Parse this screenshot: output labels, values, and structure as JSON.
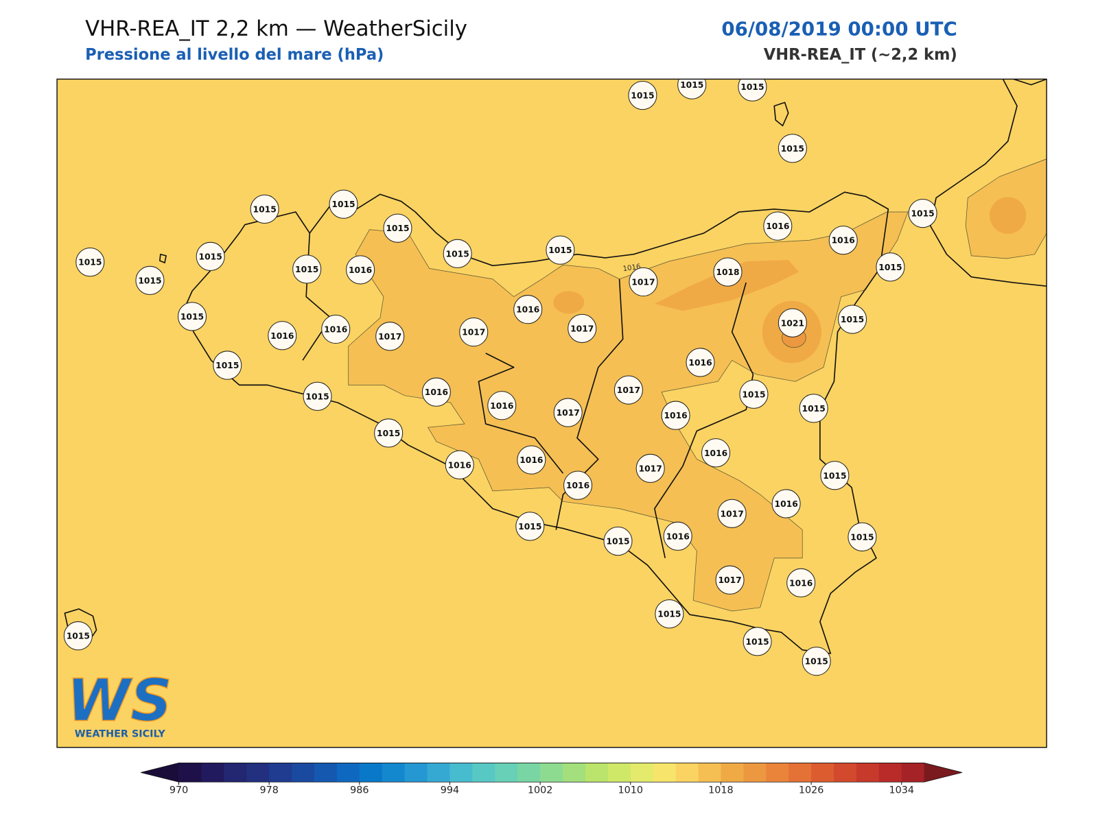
{
  "header": {
    "title": "VHR-REA_IT 2,2 km — WeatherSicily",
    "subtitle": "Pressione al livello del mare (hPa)",
    "datetime": "06/08/2019 00:00 UTC",
    "model": "VHR-REA_IT (~2,2 km)"
  },
  "stations": [
    1015,
    1015,
    1015,
    1015,
    1015,
    1015,
    1015,
    1015,
    1015,
    1016,
    1016,
    1015,
    1015,
    1015,
    1015,
    1015,
    1016,
    1017,
    1018,
    1015,
    1016,
    1015,
    1016,
    1016,
    1017,
    1017,
    1017,
    1021,
    1015,
    1015,
    1016,
    1015,
    1016,
    1016,
    1017,
    1017,
    1015,
    1015,
    1016,
    1015,
    1016,
    1016,
    1016,
    1017,
    1015,
    1016,
    1016,
    1017,
    1015,
    1015,
    1016,
    1015,
    1017,
    1016,
    1015,
    1015,
    1015,
    1015
  ],
  "contour_label": "1016",
  "logo": {
    "mark": "WS",
    "text": "WEATHER SICILY"
  },
  "colorbar": {
    "range": [
      970,
      1036
    ],
    "ticks": [
      970,
      978,
      986,
      994,
      1002,
      1010,
      1018,
      1026,
      1034
    ],
    "colors": [
      "#1e1048",
      "#221a5e",
      "#232670",
      "#22307f",
      "#1f3c90",
      "#1a4aa0",
      "#1558b0",
      "#0f68bf",
      "#0a78c8",
      "#1488cf",
      "#2597d2",
      "#36a9d3",
      "#48bccf",
      "#58c8c5",
      "#67d0b6",
      "#79d6a4",
      "#8ddb91",
      "#a3df7c",
      "#bae46b",
      "#cfe868",
      "#e3ea6c",
      "#f7e56b",
      "#fbd362",
      "#f5bf53",
      "#f0aa45",
      "#ec9840",
      "#e9843a",
      "#e47135",
      "#dc5c30",
      "#d2492d",
      "#c6392b",
      "#b82b29",
      "#a52226"
    ],
    "under_color": "#1a0d3a",
    "over_color": "#7a1a1f"
  }
}
